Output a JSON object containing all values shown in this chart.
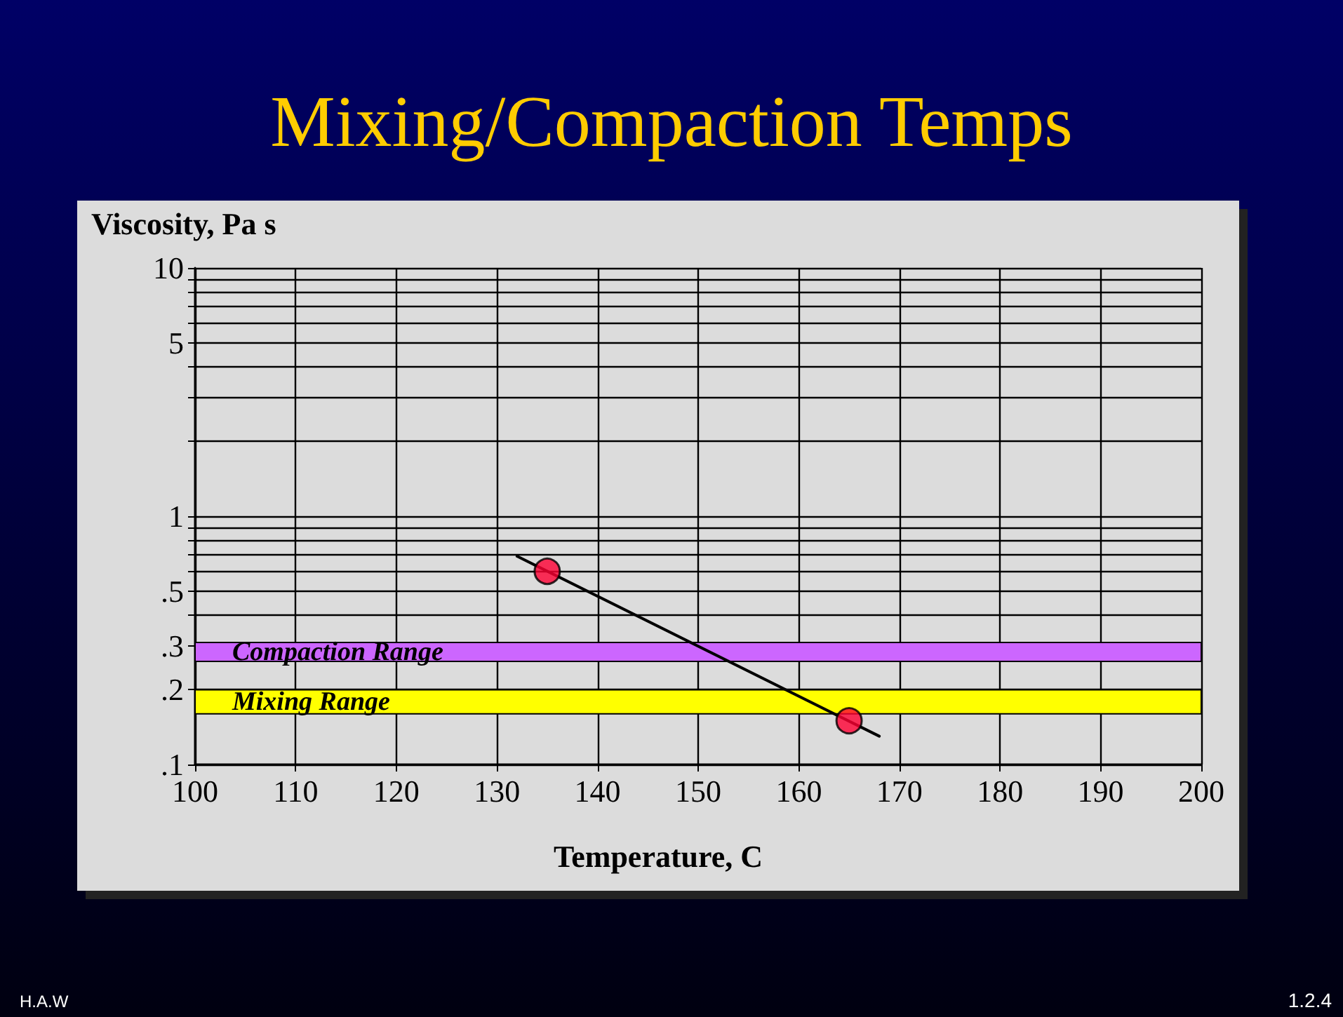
{
  "chart_data": {
    "type": "scatter",
    "title": "Mixing/Compaction Temps",
    "xlabel": "Temperature, C",
    "ylabel": "Viscosity, Pa s",
    "annotations": [
      "H.A.W",
      "1.2.4"
    ],
    "log": "y",
    "grid": true,
    "marker": "circle",
    "xlim": [
      100,
      200
    ],
    "xticks": [
      100,
      110,
      120,
      130,
      140,
      150,
      160,
      170,
      180,
      190,
      200
    ],
    "ylim": [
      0.1,
      10
    ],
    "yticks": [
      {
        "value": 0.1,
        "label": ".1"
      },
      {
        "value": 0.2,
        "label": ".2"
      },
      {
        "value": 0.3,
        "label": ".3"
      },
      {
        "value": 0.4,
        "label": null
      },
      {
        "value": 0.5,
        "label": ".5"
      },
      {
        "value": 0.6,
        "label": null
      },
      {
        "value": 0.7,
        "label": null
      },
      {
        "value": 0.8,
        "label": null
      },
      {
        "value": 0.9,
        "label": null
      },
      {
        "value": 1,
        "label": "1"
      },
      {
        "value": 2,
        "label": null
      },
      {
        "value": 3,
        "label": null
      },
      {
        "value": 4,
        "label": null
      },
      {
        "value": 5,
        "label": "5"
      },
      {
        "value": 6,
        "label": null
      },
      {
        "value": 7,
        "label": null
      },
      {
        "value": 8,
        "label": null
      },
      {
        "value": 9,
        "label": null
      },
      {
        "value": 10,
        "label": "10"
      }
    ],
    "series": [
      {
        "type": "line",
        "color": "#000000",
        "marker": "none",
        "line_style": "solid",
        "x": [
          132,
          168
        ],
        "values": [
          0.69,
          0.13
        ]
      },
      {
        "color": "#ff0033",
        "x": [
          135,
          165
        ],
        "values": [
          0.6,
          0.15
        ]
      }
    ],
    "bands": [
      {
        "axis": "y",
        "from": 0.26,
        "to": 0.31,
        "label": "Compaction Range",
        "color": "#cc66ff"
      },
      {
        "axis": "y",
        "from": 0.16,
        "to": 0.2,
        "label": "Mixing Range",
        "color": "#ffff00"
      }
    ]
  }
}
